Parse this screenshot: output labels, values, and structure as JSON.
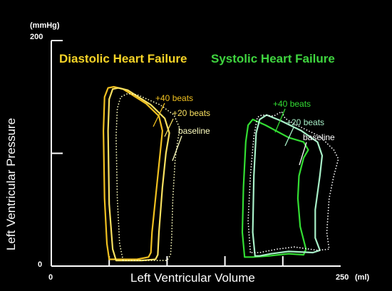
{
  "chart_data": {
    "type": "line",
    "xlabel": "Left Ventricular Volume",
    "ylabel": "Left Ventricular Pressure",
    "x_unit": "(ml)",
    "y_unit": "(mmHg)",
    "xlim": [
      0,
      250
    ],
    "ylim": [
      0,
      200
    ],
    "x_ticks": [
      "0",
      "250"
    ],
    "y_ticks": [
      "0",
      "200"
    ],
    "grid": false,
    "background": "#000000",
    "panels": [
      {
        "title": "Diastolic Heart Failure",
        "color": "#f5d327",
        "series": [
          {
            "name": "+40 beats",
            "color": "#f0c020",
            "line": "solid",
            "points": [
              [
                50,
                6
              ],
              [
                48,
                20
              ],
              [
                46,
                60
              ],
              [
                45,
                120
              ],
              [
                46,
                150
              ],
              [
                49,
                158
              ],
              [
                54,
                159
              ],
              [
                62,
                157
              ],
              [
                82,
                144
              ],
              [
                93,
                133
              ],
              [
                96,
                120
              ],
              [
                94,
                100
              ],
              [
                91,
                70
              ],
              [
                87,
                30
              ],
              [
                86,
                12
              ],
              [
                84,
                8
              ],
              [
                74,
                6
              ],
              [
                62,
                6
              ],
              [
                52,
                6
              ]
            ]
          },
          {
            "name": "+20 beats",
            "color": "#f8e060",
            "line": "solid",
            "points": [
              [
                56,
                5
              ],
              [
                53,
                15
              ],
              [
                50,
                55
              ],
              [
                49,
                120
              ],
              [
                50,
                148
              ],
              [
                53,
                157
              ],
              [
                58,
                158
              ],
              [
                66,
                156
              ],
              [
                86,
                143
              ],
              [
                98,
                131
              ],
              [
                102,
                118
              ],
              [
                99,
                100
              ],
              [
                96,
                70
              ],
              [
                93,
                30
              ],
              [
                92,
                10
              ],
              [
                90,
                6
              ],
              [
                78,
                5
              ],
              [
                65,
                5
              ],
              [
                58,
                5
              ]
            ]
          },
          {
            "name": "baseline",
            "color": "#ffffc0",
            "line": "dotted",
            "points": [
              [
                62,
                5
              ],
              [
                59,
                20
              ],
              [
                57,
                60
              ],
              [
                56,
                115
              ],
              [
                57,
                140
              ],
              [
                60,
                150
              ],
              [
                66,
                153
              ],
              [
                74,
                152
              ],
              [
                94,
                143
              ],
              [
                106,
                134
              ],
              [
                111,
                122
              ],
              [
                109,
                110
              ],
              [
                107,
                95
              ],
              [
                105,
                60
              ],
              [
                104,
                25
              ],
              [
                103,
                10
              ],
              [
                100,
                5
              ],
              [
                88,
                5
              ],
              [
                72,
                5
              ],
              [
                64,
                5
              ]
            ]
          }
        ]
      },
      {
        "title": "Systolic Heart Failure",
        "color": "#3fd43f",
        "series": [
          {
            "name": "+40 beats",
            "color": "#33dd33",
            "line": "solid",
            "points": [
              [
                167,
                8
              ],
              [
                165,
                30
              ],
              [
                166,
                70
              ],
              [
                168,
                110
              ],
              [
                170,
                125
              ],
              [
                174,
                130
              ],
              [
                185,
                125
              ],
              [
                205,
                114
              ],
              [
                218,
                110
              ],
              [
                222,
                103
              ],
              [
                218,
                96
              ],
              [
                214,
                80
              ],
              [
                213,
                60
              ],
              [
                215,
                35
              ],
              [
                220,
                15
              ],
              [
                218,
                10
              ],
              [
                205,
                11
              ],
              [
                188,
                9
              ],
              [
                174,
                8
              ],
              [
                168,
                8
              ]
            ]
          },
          {
            "name": "+20 beats",
            "color": "#a8f0c8",
            "line": "solid",
            "points": [
              [
                176,
                9
              ],
              [
                174,
                30
              ],
              [
                175,
                80
              ],
              [
                177,
                118
              ],
              [
                180,
                130
              ],
              [
                186,
                134
              ],
              [
                198,
                129
              ],
              [
                216,
                120
              ],
              [
                230,
                110
              ],
              [
                234,
                98
              ],
              [
                232,
                80
              ],
              [
                228,
                50
              ],
              [
                228,
                25
              ],
              [
                232,
                14
              ],
              [
                226,
                12
              ],
              [
                205,
                13
              ],
              [
                190,
                11
              ],
              [
                180,
                9
              ]
            ]
          },
          {
            "name": "baseline",
            "color": "#ffffff",
            "line": "dotted",
            "points": [
              [
                172,
                12
              ],
              [
                170,
                40
              ],
              [
                172,
                80
              ],
              [
                175,
                115
              ],
              [
                178,
                132
              ],
              [
                182,
                134
              ],
              [
                192,
                133
              ],
              [
                199,
                137
              ],
              [
                202,
                131
              ],
              [
                212,
                125
              ],
              [
                232,
                115
              ],
              [
                244,
                103
              ],
              [
                248,
                95
              ],
              [
                244,
                80
              ],
              [
                240,
                60
              ],
              [
                238,
                30
              ],
              [
                240,
                15
              ],
              [
                230,
                14
              ],
              [
                210,
                17
              ],
              [
                195,
                15
              ],
              [
                180,
                12
              ],
              [
                174,
                12
              ]
            ]
          }
        ]
      }
    ]
  }
}
